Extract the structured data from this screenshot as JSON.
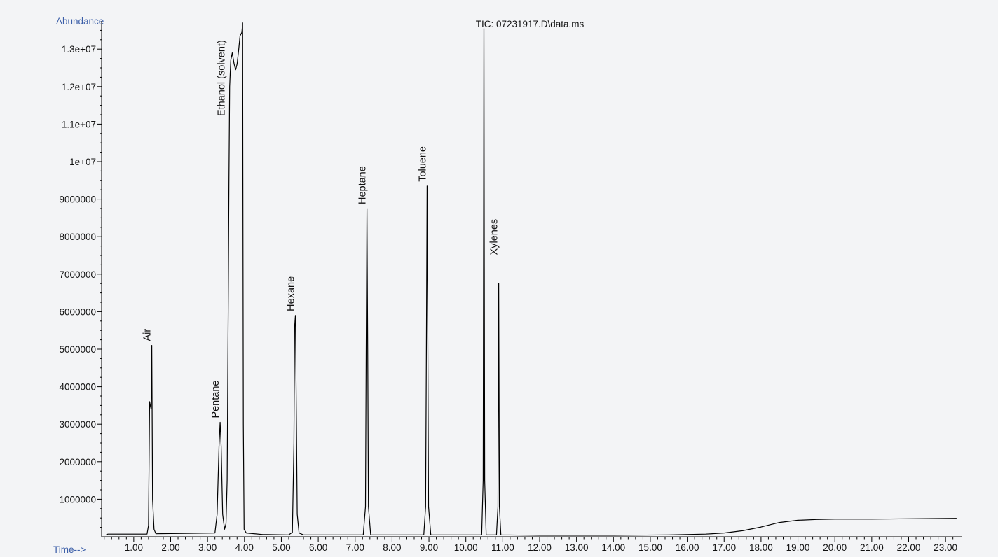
{
  "chart_data": {
    "type": "line",
    "title": "TIC: 07231917.D\\data.ms",
    "ylabel": "Abundance",
    "xlabel": "Time-->",
    "xlim": [
      0.0,
      23.3
    ],
    "ylim": [
      0,
      13750000
    ],
    "x_ticks": [
      1.0,
      2.0,
      3.0,
      4.0,
      5.0,
      6.0,
      7.0,
      8.0,
      9.0,
      10.0,
      11.0,
      12.0,
      13.0,
      14.0,
      15.0,
      16.0,
      17.0,
      18.0,
      19.0,
      20.0,
      21.0,
      22.0,
      23.0
    ],
    "x_tick_labels": [
      "1.00",
      "2.00",
      "3.00",
      "4.00",
      "5.00",
      "6.00",
      "7.00",
      "8.00",
      "9.00",
      "10.00",
      "11.00",
      "12.00",
      "13.00",
      "14.00",
      "15.00",
      "16.00",
      "17.00",
      "18.00",
      "19.00",
      "20.00",
      "21.00",
      "22.00",
      "23.00"
    ],
    "y_ticks": [
      1000000,
      2000000,
      3000000,
      4000000,
      5000000,
      6000000,
      7000000,
      8000000,
      9000000,
      10000000,
      11000000,
      12000000,
      13000000
    ],
    "y_tick_labels": [
      "1000000",
      "2000000",
      "3000000",
      "4000000",
      "5000000",
      "6000000",
      "7000000",
      "8000000",
      "9000000",
      "1e+07",
      "1.1e+07",
      "1.2e+07",
      "1.3e+07"
    ],
    "grid": false,
    "line_color": "#000000",
    "series": [
      {
        "points": [
          [
            0.25,
            50000
          ],
          [
            0.3,
            70000
          ],
          [
            1.36,
            70000
          ],
          [
            1.4,
            300000
          ],
          [
            1.43,
            3600000
          ],
          [
            1.45,
            3500000
          ],
          [
            1.47,
            3400000
          ],
          [
            1.49,
            5100000
          ],
          [
            1.51,
            1000000
          ],
          [
            1.55,
            200000
          ],
          [
            1.6,
            80000
          ],
          [
            3.2,
            100000
          ],
          [
            3.26,
            600000
          ],
          [
            3.31,
            2400000
          ],
          [
            3.34,
            3050000
          ],
          [
            3.37,
            2400000
          ],
          [
            3.41,
            600000
          ],
          [
            3.46,
            200000
          ],
          [
            3.5,
            350000
          ],
          [
            3.53,
            1500000
          ],
          [
            3.56,
            6000000
          ],
          [
            3.58,
            9500000
          ],
          [
            3.6,
            12000000
          ],
          [
            3.63,
            12700000
          ],
          [
            3.67,
            12900000
          ],
          [
            3.72,
            12600000
          ],
          [
            3.76,
            12450000
          ],
          [
            3.8,
            12600000
          ],
          [
            3.84,
            12950000
          ],
          [
            3.88,
            13350000
          ],
          [
            3.93,
            13450000
          ],
          [
            3.95,
            13700000
          ],
          [
            3.97,
            3000000
          ],
          [
            3.99,
            200000
          ],
          [
            4.05,
            100000
          ],
          [
            4.5,
            60000
          ],
          [
            5.2,
            50000
          ],
          [
            5.3,
            120000
          ],
          [
            5.34,
            2500000
          ],
          [
            5.36,
            5600000
          ],
          [
            5.38,
            5900000
          ],
          [
            5.4,
            4000000
          ],
          [
            5.43,
            600000
          ],
          [
            5.48,
            100000
          ],
          [
            5.6,
            50000
          ],
          [
            7.22,
            50000
          ],
          [
            7.28,
            800000
          ],
          [
            7.3,
            5000000
          ],
          [
            7.32,
            8750000
          ],
          [
            7.34,
            5000000
          ],
          [
            7.36,
            800000
          ],
          [
            7.42,
            50000
          ],
          [
            8.86,
            50000
          ],
          [
            8.91,
            800000
          ],
          [
            8.93,
            5000000
          ],
          [
            8.95,
            9350000
          ],
          [
            8.97,
            5000000
          ],
          [
            8.99,
            800000
          ],
          [
            9.05,
            50000
          ],
          [
            10.43,
            50000
          ],
          [
            10.47,
            1500000
          ],
          [
            10.49,
            13550000
          ],
          [
            10.51,
            1500000
          ],
          [
            10.55,
            50000
          ],
          [
            10.83,
            50000
          ],
          [
            10.87,
            800000
          ],
          [
            10.89,
            6750000
          ],
          [
            10.91,
            800000
          ],
          [
            10.95,
            50000
          ],
          [
            12.0,
            40000
          ],
          [
            14.0,
            40000
          ],
          [
            15.5,
            50000
          ],
          [
            16.5,
            70000
          ],
          [
            17.0,
            100000
          ],
          [
            17.5,
            160000
          ],
          [
            18.0,
            260000
          ],
          [
            18.5,
            380000
          ],
          [
            19.0,
            440000
          ],
          [
            19.5,
            460000
          ],
          [
            20.0,
            470000
          ],
          [
            21.0,
            470000
          ],
          [
            22.0,
            480000
          ],
          [
            23.3,
            490000
          ]
        ]
      }
    ],
    "annotations": [
      {
        "text": "Air",
        "x": 1.49,
        "y": 5100000
      },
      {
        "text": "Pentane",
        "x": 3.34,
        "y": 3050000
      },
      {
        "text": "Ethanol (solvent)",
        "x": 3.5,
        "y": 11100000
      },
      {
        "text": "Hexane",
        "x": 5.38,
        "y": 5900000
      },
      {
        "text": "Heptane",
        "x": 7.32,
        "y": 8750000
      },
      {
        "text": "Toluene",
        "x": 8.95,
        "y": 9350000
      },
      {
        "text": "Xylenes",
        "x": 10.89,
        "y": 7400000
      }
    ]
  }
}
